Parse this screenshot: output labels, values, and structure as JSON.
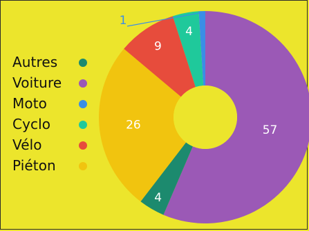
{
  "chart_data": {
    "type": "pie",
    "variant": "donut",
    "title": "",
    "legend_placement": "left",
    "slices": [
      {
        "name": "Autres",
        "value": 4,
        "color": "#1c8a6e"
      },
      {
        "name": "Voiture",
        "value": 57,
        "color": "#9b59b6"
      },
      {
        "name": "Moto",
        "value": 1,
        "color": "#3a8ee6"
      },
      {
        "name": "Cyclo",
        "value": 4,
        "color": "#1fc99b"
      },
      {
        "name": "Vélo",
        "value": 9,
        "color": "#e74c3c"
      },
      {
        "name": "Piéton",
        "value": 26,
        "color": "#f1c40f"
      }
    ],
    "labels": {
      "Autres": "4",
      "Voiture": "57",
      "Moto": "1",
      "Cyclo": "4",
      "Vélo": "9",
      "Piéton": "26"
    }
  },
  "colors": {
    "background": "#ece52c",
    "border": "#2b2b2b",
    "hole": "#ece52c"
  }
}
